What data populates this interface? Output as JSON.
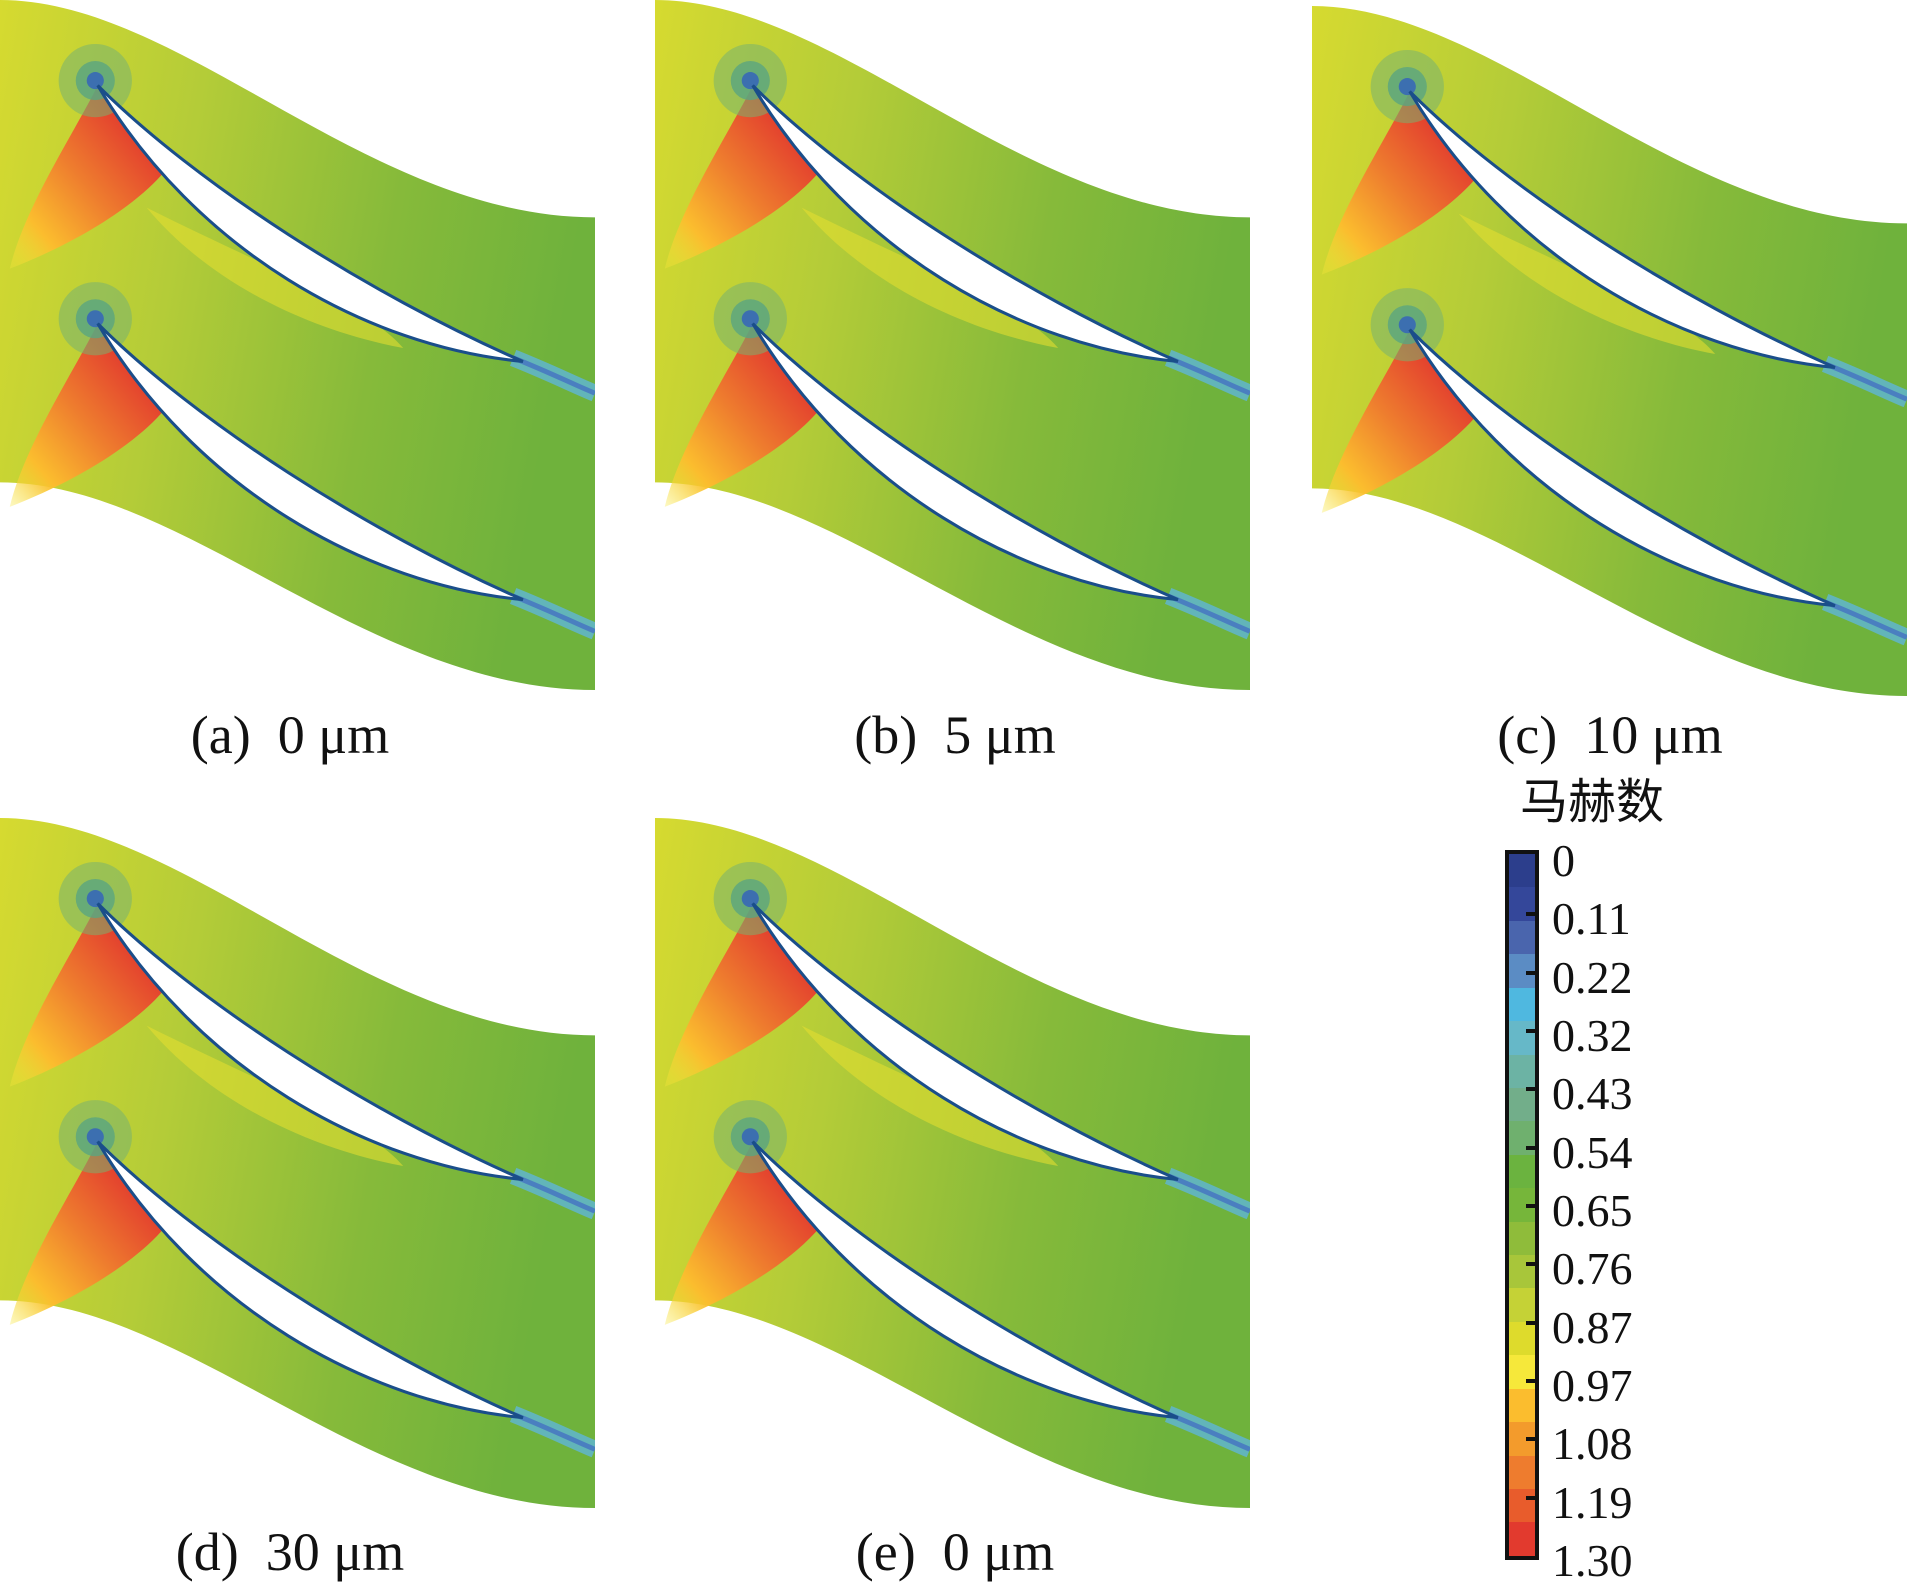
{
  "chart_data": {
    "type": "contour",
    "title": "",
    "quantity": "马赫数",
    "panels": [
      {
        "label": "(a)  0 μm",
        "roughness_um": 0
      },
      {
        "label": "(b)  5 μm",
        "roughness_um": 5
      },
      {
        "label": "(c)  10 μm",
        "roughness_um": 10
      },
      {
        "label": "(d)  30 μm",
        "roughness_um": 30
      },
      {
        "label": "(e)  0 μm",
        "roughness_um": 0
      }
    ],
    "colorbar": {
      "title": "马赫数",
      "range": [
        0,
        1.3
      ],
      "tick_labels": [
        "0",
        "0.11",
        "0.22",
        "0.32",
        "0.43",
        "0.54",
        "0.65",
        "0.76",
        "0.87",
        "0.97",
        "1.08",
        "1.19",
        "1.30"
      ],
      "colors": [
        "#2c3e8c",
        "#34479a",
        "#4a65ad",
        "#5b8cc4",
        "#4fb8e0",
        "#66b8c8",
        "#6cb3a4",
        "#72ae8a",
        "#6fb06e",
        "#6bb33f",
        "#76b63a",
        "#8fbc3a",
        "#a8c63a",
        "#c5d236",
        "#dedb2c",
        "#f6e83a",
        "#fbbd2e",
        "#f39b2c",
        "#ee7c2e",
        "#e85c2c",
        "#e23a2e"
      ]
    }
  }
}
